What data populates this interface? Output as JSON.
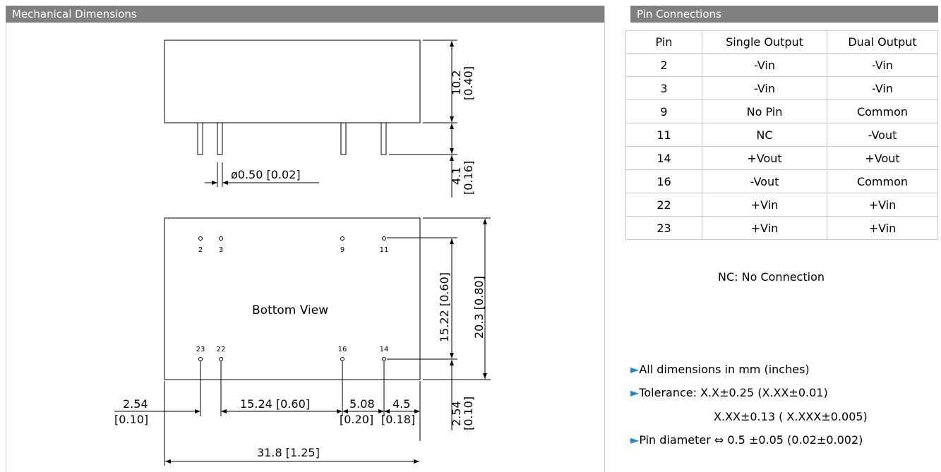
{
  "mechanical": {
    "title": "Mechanical Dimensions",
    "side_view": {
      "height_mm": "10.2",
      "height_in": "[0.40]",
      "pin_len_mm": "4.1",
      "pin_len_in": "[0.16]",
      "pin_diameter": "ø0.50 [0.02]"
    },
    "bottom_view": {
      "label": "Bottom View",
      "top_pins": [
        "2",
        "3",
        "9",
        "11"
      ],
      "bottom_pins": [
        "23",
        "22",
        "16",
        "14"
      ],
      "pin_row_spacing": "15.22 [0.60]",
      "body_height": "20.3 [0.80]",
      "edge_to_pin_mm": "2.54",
      "edge_to_pin_in": "[0.10]",
      "pin_span": "15.24 [0.60]",
      "pin_gap_mm": "5.08",
      "pin_gap_in": "[0.20]",
      "pin_end_mm": "4.5",
      "pin_end_in": "[0.18]",
      "body_width": "31.8 [1.25]",
      "vertical_offset_mm": "2.54",
      "vertical_offset_in": "[0.10]"
    }
  },
  "pins": {
    "title": "Pin Connections",
    "headers": [
      "Pin",
      "Single Output",
      "Dual Output"
    ],
    "rows": [
      [
        "2",
        "-Vin",
        "-Vin"
      ],
      [
        "3",
        "-Vin",
        "-Vin"
      ],
      [
        "9",
        "No Pin",
        "Common"
      ],
      [
        "11",
        "NC",
        "-Vout"
      ],
      [
        "14",
        "+Vout",
        "+Vout"
      ],
      [
        "16",
        "-Vout",
        "Common"
      ],
      [
        "22",
        "+Vin",
        "+Vin"
      ],
      [
        "23",
        "+Vin",
        "+Vin"
      ]
    ],
    "nc_note": "NC: No Connection",
    "notes": {
      "dims": "All dimensions in mm (inches)",
      "tol1": "Tolerance: X.X±0.25 (X.XX±0.01)",
      "tol2": "X.XX±0.13 ( X.XXX±0.005)",
      "pin_diam": "Pin diameter ⇔ 0.5 ±0.05 (0.02±0.002)"
    }
  },
  "colors": {
    "header_bg": "#808080",
    "bullet": "#1e88d8",
    "grid": "#c8c8c8"
  }
}
